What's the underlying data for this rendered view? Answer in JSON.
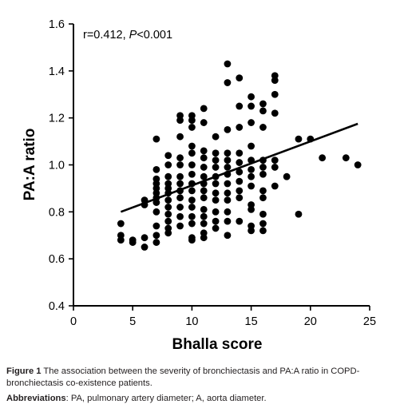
{
  "chart_data": {
    "type": "scatter",
    "title": "",
    "xlabel": "Bhalla score",
    "ylabel": "PA:A ratio",
    "xlim": [
      0,
      25
    ],
    "ylim": [
      0.4,
      1.6
    ],
    "x_ticks": [
      "0",
      "5",
      "10",
      "15",
      "20",
      "25"
    ],
    "y_ticks": [
      "0.4",
      "0.6",
      "0.8",
      "1.0",
      "1.2",
      "1.4",
      "1.6"
    ],
    "annotation": {
      "r_text": "r=0.412, ",
      "p_label": "P",
      "p_text": "<0.001"
    },
    "regression_line": {
      "x": [
        4,
        24
      ],
      "y": [
        0.8,
        1.175
      ]
    },
    "grid": false,
    "points": [
      {
        "x": 4,
        "y": 0.75
      },
      {
        "x": 4,
        "y": 0.7
      },
      {
        "x": 4,
        "y": 0.68
      },
      {
        "x": 5,
        "y": 0.68
      },
      {
        "x": 5,
        "y": 0.67
      },
      {
        "x": 6,
        "y": 0.85
      },
      {
        "x": 6,
        "y": 0.83
      },
      {
        "x": 6,
        "y": 0.69
      },
      {
        "x": 6,
        "y": 0.65
      },
      {
        "x": 7,
        "y": 1.11
      },
      {
        "x": 7,
        "y": 0.98
      },
      {
        "x": 7,
        "y": 0.94
      },
      {
        "x": 7,
        "y": 0.92
      },
      {
        "x": 7,
        "y": 0.9
      },
      {
        "x": 7,
        "y": 0.88
      },
      {
        "x": 7,
        "y": 0.86
      },
      {
        "x": 7,
        "y": 0.84
      },
      {
        "x": 7,
        "y": 0.8
      },
      {
        "x": 7,
        "y": 0.74
      },
      {
        "x": 7,
        "y": 0.7
      },
      {
        "x": 7,
        "y": 0.67
      },
      {
        "x": 8,
        "y": 1.04
      },
      {
        "x": 8,
        "y": 1.0
      },
      {
        "x": 8,
        "y": 0.95
      },
      {
        "x": 8,
        "y": 0.92
      },
      {
        "x": 8,
        "y": 0.9
      },
      {
        "x": 8,
        "y": 0.88
      },
      {
        "x": 8,
        "y": 0.85
      },
      {
        "x": 8,
        "y": 0.82
      },
      {
        "x": 8,
        "y": 0.79
      },
      {
        "x": 8,
        "y": 0.76
      },
      {
        "x": 8,
        "y": 0.73
      },
      {
        "x": 8,
        "y": 0.71
      },
      {
        "x": 9,
        "y": 1.21
      },
      {
        "x": 9,
        "y": 1.19
      },
      {
        "x": 9,
        "y": 1.12
      },
      {
        "x": 9,
        "y": 1.03
      },
      {
        "x": 9,
        "y": 1.0
      },
      {
        "x": 9,
        "y": 0.95
      },
      {
        "x": 9,
        "y": 0.92
      },
      {
        "x": 9,
        "y": 0.89
      },
      {
        "x": 9,
        "y": 0.86
      },
      {
        "x": 9,
        "y": 0.82
      },
      {
        "x": 9,
        "y": 0.78
      },
      {
        "x": 9,
        "y": 0.74
      },
      {
        "x": 10,
        "y": 1.21
      },
      {
        "x": 10,
        "y": 1.19
      },
      {
        "x": 10,
        "y": 1.16
      },
      {
        "x": 10,
        "y": 1.08
      },
      {
        "x": 10,
        "y": 1.05
      },
      {
        "x": 10,
        "y": 1.0
      },
      {
        "x": 10,
        "y": 0.96
      },
      {
        "x": 10,
        "y": 0.92
      },
      {
        "x": 10,
        "y": 0.89
      },
      {
        "x": 10,
        "y": 0.85
      },
      {
        "x": 10,
        "y": 0.82
      },
      {
        "x": 10,
        "y": 0.78
      },
      {
        "x": 10,
        "y": 0.75
      },
      {
        "x": 10,
        "y": 0.69
      },
      {
        "x": 10,
        "y": 0.68
      },
      {
        "x": 11,
        "y": 1.24
      },
      {
        "x": 11,
        "y": 1.18
      },
      {
        "x": 11,
        "y": 1.06
      },
      {
        "x": 11,
        "y": 1.03
      },
      {
        "x": 11,
        "y": 0.99
      },
      {
        "x": 11,
        "y": 0.95
      },
      {
        "x": 11,
        "y": 0.92
      },
      {
        "x": 11,
        "y": 0.89
      },
      {
        "x": 11,
        "y": 0.86
      },
      {
        "x": 11,
        "y": 0.81
      },
      {
        "x": 11,
        "y": 0.78
      },
      {
        "x": 11,
        "y": 0.75
      },
      {
        "x": 11,
        "y": 0.71
      },
      {
        "x": 11,
        "y": 0.69
      },
      {
        "x": 12,
        "y": 1.12
      },
      {
        "x": 12,
        "y": 1.05
      },
      {
        "x": 12,
        "y": 1.02
      },
      {
        "x": 12,
        "y": 0.99
      },
      {
        "x": 12,
        "y": 0.95
      },
      {
        "x": 12,
        "y": 0.92
      },
      {
        "x": 12,
        "y": 0.88
      },
      {
        "x": 12,
        "y": 0.85
      },
      {
        "x": 12,
        "y": 0.8
      },
      {
        "x": 12,
        "y": 0.76
      },
      {
        "x": 12,
        "y": 0.73
      },
      {
        "x": 13,
        "y": 1.43
      },
      {
        "x": 13,
        "y": 1.35
      },
      {
        "x": 13,
        "y": 1.15
      },
      {
        "x": 13,
        "y": 1.05
      },
      {
        "x": 13,
        "y": 1.02
      },
      {
        "x": 13,
        "y": 0.99
      },
      {
        "x": 13,
        "y": 0.96
      },
      {
        "x": 13,
        "y": 0.92
      },
      {
        "x": 13,
        "y": 0.88
      },
      {
        "x": 13,
        "y": 0.85
      },
      {
        "x": 13,
        "y": 0.8
      },
      {
        "x": 13,
        "y": 0.76
      },
      {
        "x": 13,
        "y": 0.7
      },
      {
        "x": 14,
        "y": 1.37
      },
      {
        "x": 14,
        "y": 1.25
      },
      {
        "x": 14,
        "y": 1.16
      },
      {
        "x": 14,
        "y": 1.05
      },
      {
        "x": 14,
        "y": 1.01
      },
      {
        "x": 14,
        "y": 0.97
      },
      {
        "x": 14,
        "y": 0.93
      },
      {
        "x": 14,
        "y": 0.89
      },
      {
        "x": 14,
        "y": 0.86
      },
      {
        "x": 14,
        "y": 0.76
      },
      {
        "x": 15,
        "y": 1.29
      },
      {
        "x": 15,
        "y": 1.25
      },
      {
        "x": 15,
        "y": 1.18
      },
      {
        "x": 15,
        "y": 1.08
      },
      {
        "x": 15,
        "y": 1.02
      },
      {
        "x": 15,
        "y": 0.98
      },
      {
        "x": 15,
        "y": 0.95
      },
      {
        "x": 15,
        "y": 0.91
      },
      {
        "x": 15,
        "y": 0.83
      },
      {
        "x": 15,
        "y": 0.81
      },
      {
        "x": 15,
        "y": 0.74
      },
      {
        "x": 15,
        "y": 0.72
      },
      {
        "x": 16,
        "y": 1.26
      },
      {
        "x": 16,
        "y": 1.23
      },
      {
        "x": 16,
        "y": 1.16
      },
      {
        "x": 16,
        "y": 1.02
      },
      {
        "x": 16,
        "y": 0.99
      },
      {
        "x": 16,
        "y": 0.96
      },
      {
        "x": 16,
        "y": 0.89
      },
      {
        "x": 16,
        "y": 0.86
      },
      {
        "x": 16,
        "y": 0.79
      },
      {
        "x": 16,
        "y": 0.75
      },
      {
        "x": 16,
        "y": 0.72
      },
      {
        "x": 17,
        "y": 1.38
      },
      {
        "x": 17,
        "y": 1.36
      },
      {
        "x": 17,
        "y": 1.3
      },
      {
        "x": 17,
        "y": 1.22
      },
      {
        "x": 17,
        "y": 1.02
      },
      {
        "x": 17,
        "y": 0.99
      },
      {
        "x": 17,
        "y": 0.91
      },
      {
        "x": 18,
        "y": 0.95
      },
      {
        "x": 19,
        "y": 1.11
      },
      {
        "x": 19,
        "y": 0.79
      },
      {
        "x": 20,
        "y": 1.11
      },
      {
        "x": 21,
        "y": 1.03
      },
      {
        "x": 23,
        "y": 1.03
      },
      {
        "x": 24,
        "y": 1.0
      }
    ]
  },
  "caption": {
    "figure_label": "Figure 1",
    "figure_text": " The association between the severity of bronchiectasis and PA:A ratio in COPD-bronchiectasis co-existence patients.",
    "abbr_label": "Abbreviations",
    "abbr_text": ": PA, pulmonary artery diameter; A, aorta diameter."
  }
}
